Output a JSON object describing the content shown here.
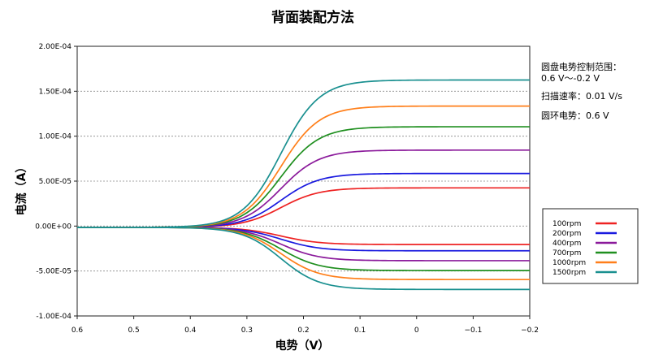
{
  "chart_data": {
    "type": "line",
    "title": "背面装配方法",
    "xlabel": "电势（V）",
    "ylabel": "电流（A）",
    "xlim": [
      0.6,
      -0.2
    ],
    "ylim": [
      -0.0001,
      0.0002
    ],
    "x_ticks": [
      "0.6",
      "0.5",
      "0.4",
      "0.3",
      "0.2",
      "0.1",
      "0",
      "−0.1",
      "−0.2"
    ],
    "x_tick_values": [
      0.6,
      0.5,
      0.4,
      0.3,
      0.2,
      0.1,
      0,
      -0.1,
      -0.2
    ],
    "y_ticks": [
      "2.00E-04",
      "1.50E-04",
      "1.00E-04",
      "5.00E-05",
      "0.00E+00",
      "-5.00E-05",
      "-1.00E-04"
    ],
    "y_tick_values": [
      0.0002,
      0.00015,
      0.0001,
      5e-05,
      0,
      -5e-05,
      -0.0001
    ],
    "grid": "horizontal dotted",
    "annotations": [
      "圆盘电势控制范围：",
      "0.6 V～-0.2 V",
      "扫描速率：0.01 V/s",
      "圆环电势：0.6 V"
    ],
    "legend_position": "right",
    "series": [
      {
        "name": "100rpm",
        "color": "#ee2222",
        "disk_limit": 4.4e-05,
        "ring_limit": -1.9e-05
      },
      {
        "name": "200rpm",
        "color": "#1a1adf",
        "disk_limit": 6e-05,
        "ring_limit": -2.6e-05
      },
      {
        "name": "400rpm",
        "color": "#8b1a9b",
        "disk_limit": 8.6e-05,
        "ring_limit": -3.7e-05
      },
      {
        "name": "700rpm",
        "color": "#1f8f1f",
        "disk_limit": 0.000112,
        "ring_limit": -4.8e-05
      },
      {
        "name": "1000rpm",
        "color": "#ff7f1a",
        "disk_limit": 0.000135,
        "ring_limit": -5.8e-05
      },
      {
        "name": "1500rpm",
        "color": "#1a9090",
        "disk_limit": 0.000164,
        "ring_limit": -6.9e-05
      }
    ],
    "curve_model": {
      "half_wave_potential": 0.24,
      "slope": 0.034,
      "baseline": -1.5e-06
    }
  }
}
